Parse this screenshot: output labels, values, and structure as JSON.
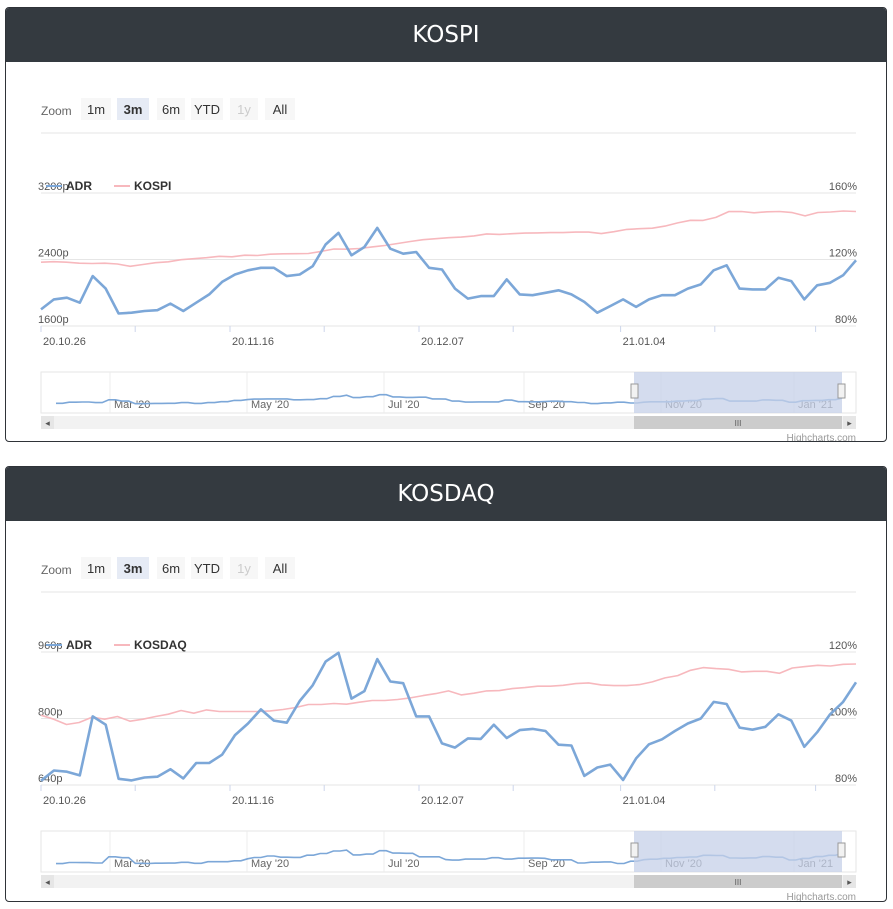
{
  "zoom": {
    "label": "Zoom",
    "buttons": [
      "1m",
      "3m",
      "6m",
      "YTD",
      "1y",
      "All"
    ],
    "selected": "3m",
    "disabled": [
      "1y"
    ]
  },
  "credits": "Highcharts.com",
  "navigator_labels": [
    "Mar '20",
    "May '20",
    "Jul '20",
    "Sep '20",
    "Nov '20",
    "Jan '21"
  ],
  "scrollbar_grip": "III",
  "colors": {
    "adr": "#7ca7d8",
    "index": "#f7b8bd",
    "header": "#343a40",
    "navigator_mask": "#c5d0e8"
  },
  "charts": [
    {
      "title": "KOSPI",
      "chart_data": {
        "type": "line",
        "x_tick_labels": [
          "20.10.26",
          "20.11.16",
          "20.12.07",
          "21.01.04"
        ],
        "left_axis": {
          "ticks": [
            "1600p",
            "2400p",
            "3200p"
          ],
          "range": [
            1600,
            3200
          ]
        },
        "right_axis": {
          "ticks": [
            "80%",
            "120%",
            "160%"
          ],
          "range": [
            80,
            160
          ]
        },
        "legend": [
          "ADR",
          "KOSPI"
        ],
        "series": [
          {
            "name": "ADR",
            "axis": "left",
            "values": [
              1800,
              1920,
              1940,
              1880,
              2200,
              2050,
              1750,
              1760,
              1780,
              1790,
              1870,
              1780,
              1880,
              1980,
              2130,
              2220,
              2270,
              2300,
              2300,
              2200,
              2220,
              2320,
              2580,
              2720,
              2450,
              2550,
              2780,
              2530,
              2470,
              2490,
              2300,
              2280,
              2050,
              1930,
              1960,
              1960,
              2160,
              1980,
              1970,
              2000,
              2030,
              1980,
              1890,
              1760,
              1840,
              1920,
              1830,
              1920,
              1970,
              1970,
              2050,
              2100,
              2270,
              2330,
              2050,
              2040,
              2040,
              2180,
              2140,
              1920,
              2090,
              2120,
              2210,
              2390
            ]
          },
          {
            "name": "KOSPI",
            "axis": "right",
            "values": [
              118.4,
              118.7,
              118.4,
              117.8,
              117.6,
              117.8,
              117.3,
              115.9,
              117.0,
              118.1,
              118.6,
              119.9,
              120.5,
              121.1,
              121.9,
              121.6,
              122.6,
              122.4,
              123.2,
              123.4,
              123.5,
              123.6,
              124.9,
              126.3,
              126.2,
              126.6,
              127.6,
              128.4,
              129.6,
              130.8,
              131.9,
              132.5,
              133.1,
              133.5,
              134.2,
              135.4,
              135.1,
              135.5,
              135.9,
              136.0,
              136.2,
              136.2,
              136.5,
              136.5,
              135.6,
              136.7,
              138.1,
              138.5,
              138.8,
              140.1,
              142.0,
              143.6,
              143.5,
              145.3,
              148.8,
              148.9,
              148.1,
              148.7,
              148.9,
              148.2,
              146.2,
              148.3,
              148.6,
              149.2,
              148.9
            ]
          }
        ]
      }
    },
    {
      "title": "KOSDAQ",
      "chart_data": {
        "type": "line",
        "x_tick_labels": [
          "20.10.26",
          "20.11.16",
          "20.12.07",
          "21.01.04"
        ],
        "left_axis": {
          "ticks": [
            "640p",
            "800p",
            "960p"
          ],
          "range": [
            640,
            960
          ]
        },
        "right_axis": {
          "ticks": [
            "80%",
            "100%",
            "120%"
          ],
          "range": [
            80,
            120
          ]
        },
        "legend": [
          "ADR",
          "KOSDAQ"
        ],
        "series": [
          {
            "name": "ADR",
            "axis": "left",
            "values": [
              650,
              675,
              672,
              663,
              805,
              785,
              655,
              651,
              658,
              660,
              678,
              656,
              693,
              693,
              713,
              760,
              788,
              822,
              795,
              790,
              842,
              880,
              937,
              958,
              848,
              866,
              943,
              889,
              885,
              805,
              805,
              740,
              730,
              752,
              751,
              785,
              753,
              772,
              775,
              770,
              737,
              735,
              662,
              682,
              689,
              652,
              704,
              738,
              750,
              770,
              788,
              800,
              840,
              835,
              778,
              773,
              780,
              810,
              795,
              732,
              767,
              810,
              840,
              887
            ]
          },
          {
            "name": "KOSDAQ",
            "axis": "right",
            "values": [
              101.0,
              99.8,
              98.2,
              98.8,
              100.4,
              99.8,
              100.6,
              99.2,
              99.8,
              100.6,
              101.3,
              102.4,
              101.6,
              102.6,
              102.1,
              102.1,
              102.1,
              102.1,
              102.3,
              102.7,
              103.3,
              104.2,
              104.2,
              104.5,
              104.3,
              104.9,
              105.4,
              105.4,
              105.7,
              106.2,
              106.9,
              107.5,
              108.3,
              107.1,
              107.6,
              108.3,
              108.4,
              109.0,
              109.3,
              109.7,
              109.7,
              110.0,
              110.5,
              110.7,
              110.1,
              109.9,
              109.9,
              110.2,
              111.0,
              112.2,
              112.9,
              114.5,
              115.3,
              115.0,
              114.8,
              114.0,
              114.2,
              114.2,
              113.6,
              115.2,
              115.6,
              116.0,
              115.8,
              116.3,
              116.4
            ]
          }
        ]
      }
    }
  ]
}
